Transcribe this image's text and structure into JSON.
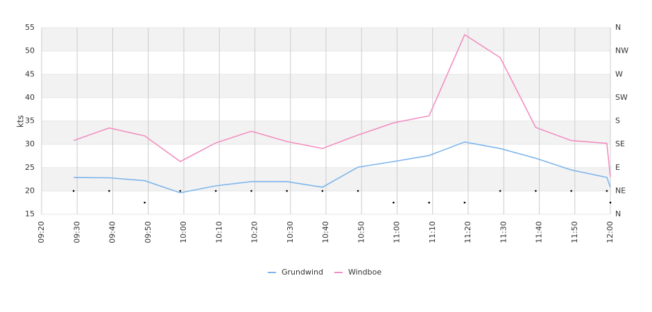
{
  "chart_data": {
    "type": "line",
    "y_label": "kts",
    "x": [
      "09:29",
      "09:39",
      "09:49",
      "09:59",
      "10:09",
      "10:19",
      "10:29",
      "10:39",
      "10:49",
      "10:59",
      "11:09",
      "11:19",
      "11:29",
      "11:39",
      "11:49",
      "11:59",
      "12:00"
    ],
    "series": [
      {
        "name": "Grundwind",
        "color": "#7cb5ec",
        "values": [
          22.9,
          22.8,
          22.2,
          19.6,
          21.1,
          22.0,
          22.0,
          20.8,
          25.1,
          26.3,
          27.6,
          30.5,
          29.1,
          27.0,
          24.5,
          22.9,
          20.8
        ]
      },
      {
        "name": "Windboe",
        "color": "#f28fc0",
        "values": [
          30.8,
          33.5,
          31.8,
          26.3,
          30.3,
          32.8,
          30.6,
          29.1,
          32.0,
          34.6,
          36.1,
          53.5,
          48.6,
          33.6,
          30.8,
          30.2,
          23.0
        ]
      }
    ],
    "direction": {
      "axis": "y2",
      "color": "#000000",
      "values": [
        45,
        45,
        22.5,
        45,
        45,
        45,
        45,
        45,
        45,
        22.5,
        22.5,
        22.5,
        45,
        45,
        45,
        45,
        22.5
      ]
    },
    "xlim": [
      "09:20",
      "12:00"
    ],
    "xticks": [
      "09:20",
      "09:30",
      "09:40",
      "09:50",
      "10:00",
      "10:10",
      "10:20",
      "10:30",
      "10:40",
      "10:50",
      "11:00",
      "11:10",
      "11:20",
      "11:30",
      "11:40",
      "11:50",
      "12:00"
    ],
    "ylim": [
      15,
      55
    ],
    "yticks": [
      15,
      20,
      25,
      30,
      35,
      40,
      45,
      50,
      55
    ],
    "y2lim": [
      0,
      360
    ],
    "y2ticks": [
      {
        "value": 0,
        "label": "N"
      },
      {
        "value": 45,
        "label": "NE"
      },
      {
        "value": 90,
        "label": "E"
      },
      {
        "value": 135,
        "label": "SE"
      },
      {
        "value": 180,
        "label": "S"
      },
      {
        "value": 225,
        "label": "SW"
      },
      {
        "value": 270,
        "label": "W"
      },
      {
        "value": 315,
        "label": "NW"
      },
      {
        "value": 360,
        "label": "N"
      }
    ],
    "grid": true,
    "alternate_bands": true,
    "legend": "bottom"
  }
}
